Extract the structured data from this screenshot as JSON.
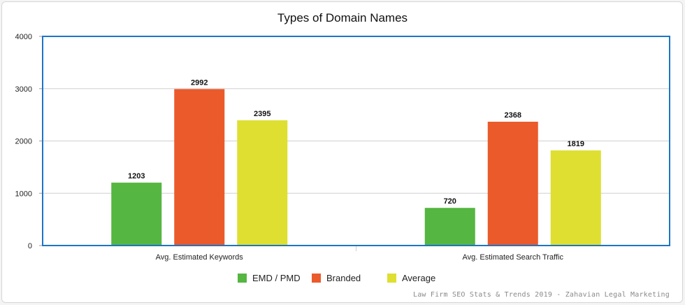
{
  "colors": {
    "series": [
      "#55b641",
      "#eb5a2b",
      "#dedf31"
    ],
    "plot_border": "#1e74c6",
    "grid": "#d0d0d0",
    "axis": "#9a9a9a"
  },
  "chart_data": {
    "type": "bar",
    "title": "Types of Domain Names",
    "xlabel": "",
    "ylabel": "",
    "categories": [
      "Avg. Estimated Keywords",
      "Avg. Estimated Search Traffic"
    ],
    "series": [
      {
        "name": "EMD / PMD",
        "values": [
          1203,
          720
        ]
      },
      {
        "name": "Branded",
        "values": [
          2992,
          2368
        ]
      },
      {
        "name": "Average",
        "values": [
          2395,
          1819
        ]
      }
    ],
    "ylim": [
      0,
      4000
    ],
    "yticks": [
      0,
      1000,
      2000,
      3000,
      4000
    ],
    "grid": true,
    "data_labels": true,
    "legend_position": "bottom-center"
  },
  "footer": {
    "credit": "Law Firm SEO Stats & Trends 2019 - Zahavian Legal Marketing"
  }
}
